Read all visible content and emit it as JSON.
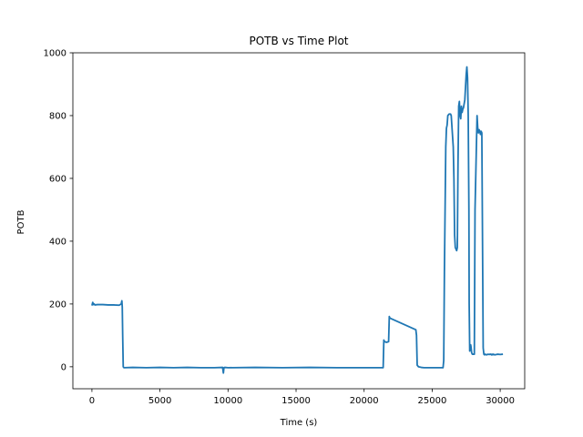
{
  "chart_data": {
    "type": "line",
    "title": "POTB vs Time Plot",
    "xlabel": "Time (s)",
    "ylabel": "POTB",
    "xlim": [
      -1400,
      31800
    ],
    "ylim": [
      -70,
      1000
    ],
    "xticks": [
      0,
      5000,
      10000,
      15000,
      20000,
      25000,
      30000
    ],
    "yticks": [
      0,
      200,
      400,
      600,
      800,
      1000
    ],
    "grid": false,
    "line_color": "#1f77b4",
    "series": [
      {
        "x": [
          0,
          60,
          120,
          160,
          220,
          400,
          800,
          1200,
          1600,
          2000,
          2150,
          2200,
          2230,
          2260,
          2300,
          2350,
          3000,
          4000,
          5000,
          6000,
          7000,
          8000,
          9000,
          9600,
          9660,
          9700,
          9760,
          10000,
          12000,
          14000,
          16000,
          18000,
          20000,
          21400,
          21450,
          21500,
          21650,
          21800,
          21850,
          21900,
          23800,
          23850,
          23900,
          24000,
          24200,
          24400,
          24600,
          25800,
          25850,
          25900,
          25950,
          26000,
          26050,
          26100,
          26150,
          26250,
          26350,
          26400,
          26550,
          26600,
          26650,
          26700,
          26800,
          26850,
          26900,
          26950,
          27000,
          27050,
          27100,
          27150,
          27200,
          27250,
          27300,
          27400,
          27500,
          27550,
          27600,
          27650,
          27700,
          27720,
          27760,
          27800,
          27830,
          27850,
          27900,
          27950,
          28100,
          28150,
          28300,
          28350,
          28400,
          28450,
          28500,
          28550,
          28600,
          28650,
          28700,
          28750,
          28800,
          28850,
          28900,
          29000,
          29100,
          29200,
          29250,
          29300,
          29350,
          29400,
          29450,
          29500,
          29600,
          29800,
          30000,
          30200
        ],
        "y": [
          195,
          205,
          198,
          200,
          197,
          198,
          198,
          197,
          197,
          196,
          200,
          210,
          190,
          100,
          0,
          -3,
          -2,
          -3,
          -2,
          -3,
          -2,
          -3,
          -3,
          -2,
          -20,
          -3,
          -2,
          -3,
          -2,
          -3,
          -2,
          -3,
          -3,
          -3,
          85,
          80,
          78,
          80,
          160,
          155,
          118,
          100,
          5,
          0,
          -2,
          -3,
          -3,
          -3,
          20,
          300,
          500,
          700,
          760,
          770,
          800,
          805,
          805,
          800,
          700,
          600,
          420,
          380,
          370,
          380,
          650,
          830,
          845,
          800,
          790,
          830,
          810,
          820,
          825,
          850,
          930,
          955,
          920,
          800,
          500,
          200,
          50,
          60,
          70,
          65,
          45,
          40,
          40,
          500,
          800,
          760,
          745,
          755,
          750,
          740,
          750,
          745,
          400,
          60,
          40,
          38,
          40,
          38,
          40,
          39,
          40,
          40,
          38,
          40,
          38,
          40,
          38,
          40,
          39,
          40
        ]
      }
    ]
  }
}
